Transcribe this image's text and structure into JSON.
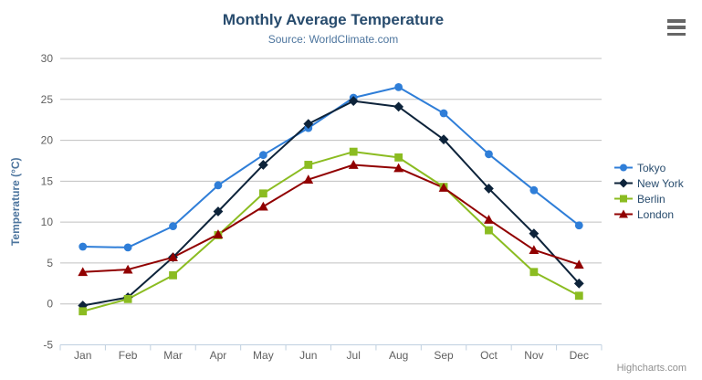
{
  "chart_data": {
    "type": "line",
    "title": "Monthly Average Temperature",
    "subtitle": "Source: WorldClimate.com",
    "categories": [
      "Jan",
      "Feb",
      "Mar",
      "Apr",
      "May",
      "Jun",
      "Jul",
      "Aug",
      "Sep",
      "Oct",
      "Nov",
      "Dec"
    ],
    "xlabel": "",
    "ylabel": "Temperature (°C)",
    "ylim": [
      -5,
      30
    ],
    "ytick_interval": 5,
    "yticks": [
      -5,
      0,
      5,
      10,
      15,
      20,
      25,
      30
    ],
    "grid": true,
    "legend_position": "right",
    "series": [
      {
        "name": "Tokyo",
        "marker": "circle",
        "color": "#2f7ed8",
        "values": [
          7.0,
          6.9,
          9.5,
          14.5,
          18.2,
          21.5,
          25.2,
          26.5,
          23.3,
          18.3,
          13.9,
          9.6
        ]
      },
      {
        "name": "New York",
        "marker": "diamond",
        "color": "#0d233a",
        "values": [
          -0.2,
          0.8,
          5.7,
          11.3,
          17.0,
          22.0,
          24.8,
          24.1,
          20.1,
          14.1,
          8.6,
          2.5
        ]
      },
      {
        "name": "Berlin",
        "marker": "square",
        "color": "#8bbc21",
        "values": [
          -0.9,
          0.6,
          3.5,
          8.4,
          13.5,
          17.0,
          18.6,
          17.9,
          14.3,
          9.0,
          3.9,
          1.0
        ]
      },
      {
        "name": "London",
        "marker": "triangle",
        "color": "#910000",
        "values": [
          3.9,
          4.2,
          5.7,
          8.5,
          11.9,
          15.2,
          17.0,
          16.6,
          14.2,
          10.3,
          6.6,
          4.8
        ]
      }
    ]
  },
  "credits": "Highcharts.com",
  "colors": {
    "title": "#274b6d",
    "subtitle": "#4d759e",
    "axis_title": "#4d759e",
    "axis_labels": "#606060",
    "grid_line": "#c0c0c0",
    "axis_line": "#c0d0e0",
    "legend_text": "#274b6d",
    "credits_text": "#909090",
    "background": "#ffffff"
  }
}
